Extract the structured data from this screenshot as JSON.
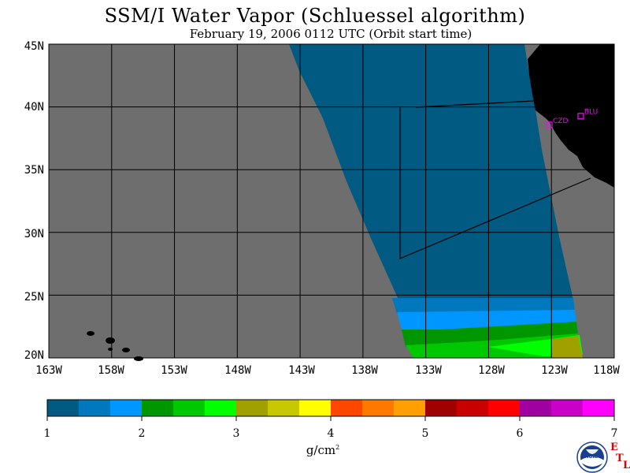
{
  "title": "SSM/I Water Vapor (Schluessel algorithm)",
  "subtitle": "February 19, 2006  0112 UTC  (Orbit start time)",
  "lat_labels": [
    "45N",
    "40N",
    "35N",
    "30N",
    "25N",
    "20N"
  ],
  "lon_labels": [
    "163W",
    "158W",
    "153W",
    "148W",
    "143W",
    "138W",
    "133W",
    "128W",
    "123W",
    "118W"
  ],
  "stations": [
    {
      "id": "CZD",
      "lat": 38.6,
      "lon": -123.2
    },
    {
      "id": "BLU",
      "lat": 39.3,
      "lon": -120.7
    }
  ],
  "colorbar": {
    "ticks": [
      "1",
      "2",
      "3",
      "4",
      "5",
      "6",
      "7"
    ],
    "min": 1,
    "max": 7,
    "units": "g/cm",
    "units_sup": "2",
    "colors": [
      "#005a82",
      "#0078be",
      "#0096ff",
      "#009600",
      "#00c800",
      "#00ff00",
      "#a0a000",
      "#c8c800",
      "#ffff00",
      "#ff4600",
      "#ff7800",
      "#ffa000",
      "#a00000",
      "#c80000",
      "#ff0000",
      "#a000a0",
      "#c800c8",
      "#ff00ff"
    ]
  },
  "map_colors": {
    "no_data": "#6e6e6e",
    "land": "#000000",
    "station": "#ff00ff"
  },
  "logo": {
    "text": "NOAA"
  },
  "lab": {
    "letters": [
      "E",
      "T",
      "L"
    ]
  }
}
